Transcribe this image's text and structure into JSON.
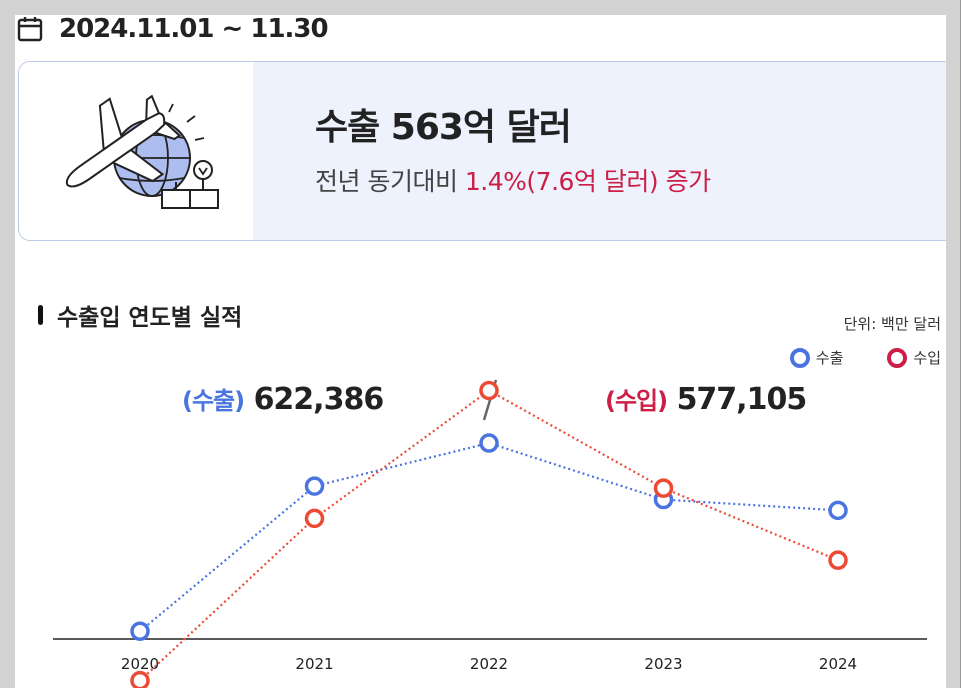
{
  "header": {
    "date_range": "2024.11.01 ~ 11.30",
    "calendar_icon": "calendar-icon"
  },
  "summary": {
    "illustration_icon": "airplane-globe-cargo-icon",
    "export_title": "수출 563억 달러",
    "yoy_prefix": "전년 동기대비",
    "yoy_change": "1.4%(7.6억 달러) 증가"
  },
  "section": {
    "title": "수출입 연도별 실적",
    "unit": "단위: 백만 달러",
    "legend": {
      "export": "수출",
      "import": "수입"
    },
    "totals": {
      "export_label": "(수출)",
      "export_value": "622,386",
      "import_label": "(수입)",
      "import_value": "577,105"
    }
  },
  "colors": {
    "export": "#4a74e0",
    "import": "#ec4a35",
    "red_text": "#cc1f47"
  },
  "chart_data": {
    "type": "line",
    "categories": [
      "2020",
      "2021",
      "2022",
      "2023",
      "2024"
    ],
    "series": [
      {
        "name": "수출",
        "values": [
          512498,
          644400,
          683585,
          632226,
          622386
        ]
      },
      {
        "name": "수입",
        "values": [
          467633,
          615093,
          731370,
          642572,
          577105
        ]
      }
    ],
    "ylim": [
      400000,
      800000
    ],
    "legend": "top-right",
    "grid": false
  }
}
